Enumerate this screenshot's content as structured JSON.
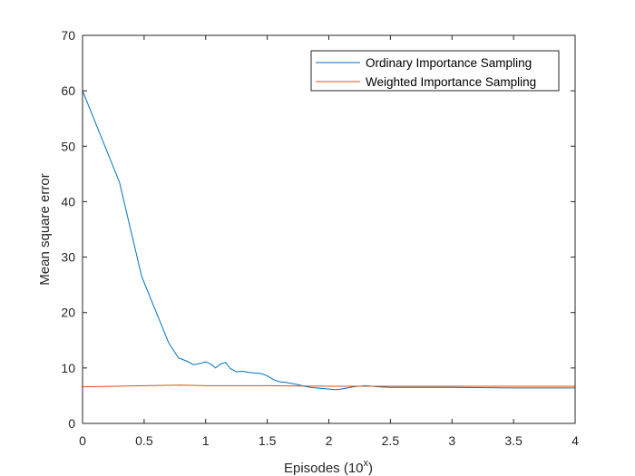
{
  "chart_data": {
    "type": "line",
    "title": "",
    "xlabel": "Episodes (10",
    "xlabel_superscript": "x",
    "xlabel_suffix": ")",
    "ylabel": "Mean square error",
    "xlim": [
      0,
      4
    ],
    "ylim": [
      0,
      70
    ],
    "xticks": [
      0,
      0.5,
      1,
      1.5,
      2,
      2.5,
      3,
      3.5,
      4
    ],
    "xtick_labels": [
      "0",
      "0.5",
      "1",
      "1.5",
      "2",
      "2.5",
      "3",
      "3.5",
      "4"
    ],
    "yticks": [
      0,
      10,
      20,
      30,
      40,
      50,
      60,
      70
    ],
    "ytick_labels": [
      "0",
      "10",
      "20",
      "30",
      "40",
      "50",
      "60",
      "70"
    ],
    "grid": false,
    "legend_position": "top-right",
    "series": [
      {
        "name": "Ordinary Importance Sampling",
        "color": "#0072BD",
        "x": [
          0,
          0.3,
          0.48,
          0.7,
          0.78,
          0.85,
          0.9,
          0.95,
          1.0,
          1.05,
          1.08,
          1.12,
          1.16,
          1.2,
          1.25,
          1.3,
          1.35,
          1.4,
          1.45,
          1.5,
          1.55,
          1.6,
          1.65,
          1.7,
          1.75,
          1.8,
          1.85,
          1.9,
          1.95,
          2.0,
          2.05,
          2.1,
          2.15,
          2.2,
          2.3,
          2.4,
          2.5,
          2.7,
          3.0,
          3.5,
          4.0
        ],
        "y": [
          60,
          43.5,
          26.5,
          14.5,
          11.8,
          11.2,
          10.6,
          10.8,
          11.1,
          10.6,
          10.0,
          10.7,
          11.0,
          9.9,
          9.3,
          9.4,
          9.2,
          9.1,
          9.0,
          8.6,
          7.9,
          7.5,
          7.4,
          7.2,
          7.0,
          6.7,
          6.5,
          6.4,
          6.3,
          6.2,
          6.1,
          6.2,
          6.4,
          6.6,
          6.8,
          6.6,
          6.5,
          6.5,
          6.5,
          6.4,
          6.4
        ]
      },
      {
        "name": "Weighted Importance Sampling",
        "color": "#D95319",
        "x": [
          0,
          0.5,
          0.8,
          1.0,
          1.5,
          2.0,
          2.5,
          3.0,
          3.5,
          4.0
        ],
        "y": [
          6.6,
          6.8,
          6.9,
          6.8,
          6.8,
          6.7,
          6.7,
          6.7,
          6.7,
          6.7
        ]
      }
    ]
  }
}
